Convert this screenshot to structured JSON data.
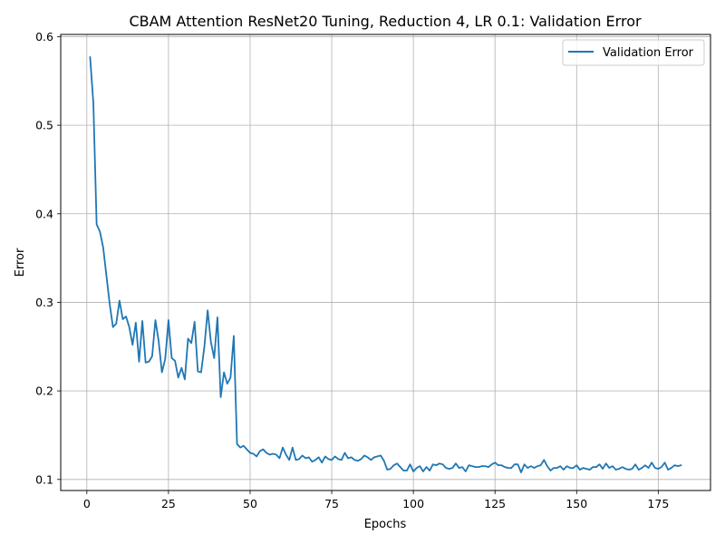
{
  "chart_data": {
    "type": "line",
    "title": "CBAM Attention ResNet20 Tuning, Reduction 4, LR 0.1: Validation Error",
    "xlabel": "Epochs",
    "ylabel": "Error",
    "xlim": [
      -8,
      191
    ],
    "ylim": [
      0.0875,
      0.6025
    ],
    "xticks": [
      0,
      25,
      50,
      75,
      100,
      125,
      150,
      175
    ],
    "yticks": [
      0.1,
      0.2,
      0.3,
      0.4,
      0.5,
      0.6
    ],
    "xtick_labels": [
      "0",
      "25",
      "50",
      "75",
      "100",
      "125",
      "150",
      "175"
    ],
    "ytick_labels": [
      "0.1",
      "0.2",
      "0.3",
      "0.4",
      "0.5",
      "0.6"
    ],
    "grid": true,
    "legend_position": "top-right",
    "series": [
      {
        "name": "Validation Error",
        "color": "#1f77b4",
        "x": [
          1,
          2,
          3,
          4,
          5,
          6,
          7,
          8,
          9,
          10,
          11,
          12,
          13,
          14,
          15,
          16,
          17,
          18,
          19,
          20,
          21,
          22,
          23,
          24,
          25,
          26,
          27,
          28,
          29,
          30,
          31,
          32,
          33,
          34,
          35,
          36,
          37,
          38,
          39,
          40,
          41,
          42,
          43,
          44,
          45,
          46,
          47,
          48,
          49,
          50,
          51,
          52,
          53,
          54,
          55,
          56,
          57,
          58,
          59,
          60,
          61,
          62,
          63,
          64,
          65,
          66,
          67,
          68,
          69,
          70,
          71,
          72,
          73,
          74,
          75,
          76,
          77,
          78,
          79,
          80,
          81,
          82,
          83,
          84,
          85,
          86,
          87,
          88,
          89,
          90,
          91,
          92,
          93,
          94,
          95,
          96,
          97,
          98,
          99,
          100,
          101,
          102,
          103,
          104,
          105,
          106,
          107,
          108,
          109,
          110,
          111,
          112,
          113,
          114,
          115,
          116,
          117,
          118,
          119,
          120,
          121,
          122,
          123,
          124,
          125,
          126,
          127,
          128,
          129,
          130,
          131,
          132,
          133,
          134,
          135,
          136,
          137,
          138,
          139,
          140,
          141,
          142,
          143,
          144,
          145,
          146,
          147,
          148,
          149,
          150,
          151,
          152,
          153,
          154,
          155,
          156,
          157,
          158,
          159,
          160,
          161,
          162,
          163,
          164,
          165,
          166,
          167,
          168,
          169,
          170,
          171,
          172,
          173,
          174,
          175,
          176,
          177,
          178,
          179,
          180,
          181,
          182
        ],
        "values": [
          0.577,
          0.525,
          0.388,
          0.38,
          0.362,
          0.33,
          0.298,
          0.272,
          0.276,
          0.302,
          0.281,
          0.284,
          0.272,
          0.252,
          0.277,
          0.233,
          0.279,
          0.232,
          0.233,
          0.239,
          0.28,
          0.256,
          0.221,
          0.236,
          0.28,
          0.237,
          0.234,
          0.215,
          0.226,
          0.213,
          0.259,
          0.254,
          0.278,
          0.222,
          0.221,
          0.25,
          0.291,
          0.255,
          0.237,
          0.283,
          0.193,
          0.221,
          0.208,
          0.215,
          0.262,
          0.14,
          0.136,
          0.138,
          0.134,
          0.13,
          0.129,
          0.126,
          0.132,
          0.134,
          0.13,
          0.128,
          0.129,
          0.128,
          0.124,
          0.136,
          0.128,
          0.122,
          0.136,
          0.122,
          0.123,
          0.127,
          0.124,
          0.125,
          0.12,
          0.122,
          0.125,
          0.119,
          0.126,
          0.123,
          0.122,
          0.126,
          0.123,
          0.122,
          0.13,
          0.124,
          0.125,
          0.122,
          0.121,
          0.123,
          0.127,
          0.125,
          0.122,
          0.125,
          0.126,
          0.127,
          0.121,
          0.111,
          0.112,
          0.116,
          0.118,
          0.114,
          0.11,
          0.11,
          0.117,
          0.109,
          0.113,
          0.115,
          0.109,
          0.114,
          0.11,
          0.117,
          0.116,
          0.118,
          0.117,
          0.113,
          0.112,
          0.113,
          0.118,
          0.113,
          0.114,
          0.109,
          0.116,
          0.115,
          0.114,
          0.114,
          0.115,
          0.115,
          0.114,
          0.117,
          0.119,
          0.116,
          0.116,
          0.114,
          0.113,
          0.113,
          0.117,
          0.117,
          0.108,
          0.117,
          0.113,
          0.115,
          0.113,
          0.115,
          0.116,
          0.122,
          0.115,
          0.11,
          0.113,
          0.113,
          0.115,
          0.111,
          0.115,
          0.113,
          0.113,
          0.116,
          0.111,
          0.113,
          0.112,
          0.111,
          0.114,
          0.114,
          0.117,
          0.112,
          0.118,
          0.113,
          0.115,
          0.111,
          0.112,
          0.114,
          0.112,
          0.111,
          0.112,
          0.117,
          0.111,
          0.113,
          0.116,
          0.113,
          0.119,
          0.113,
          0.112,
          0.114,
          0.119,
          0.111,
          0.113,
          0.116,
          0.115,
          0.116
        ]
      }
    ]
  }
}
